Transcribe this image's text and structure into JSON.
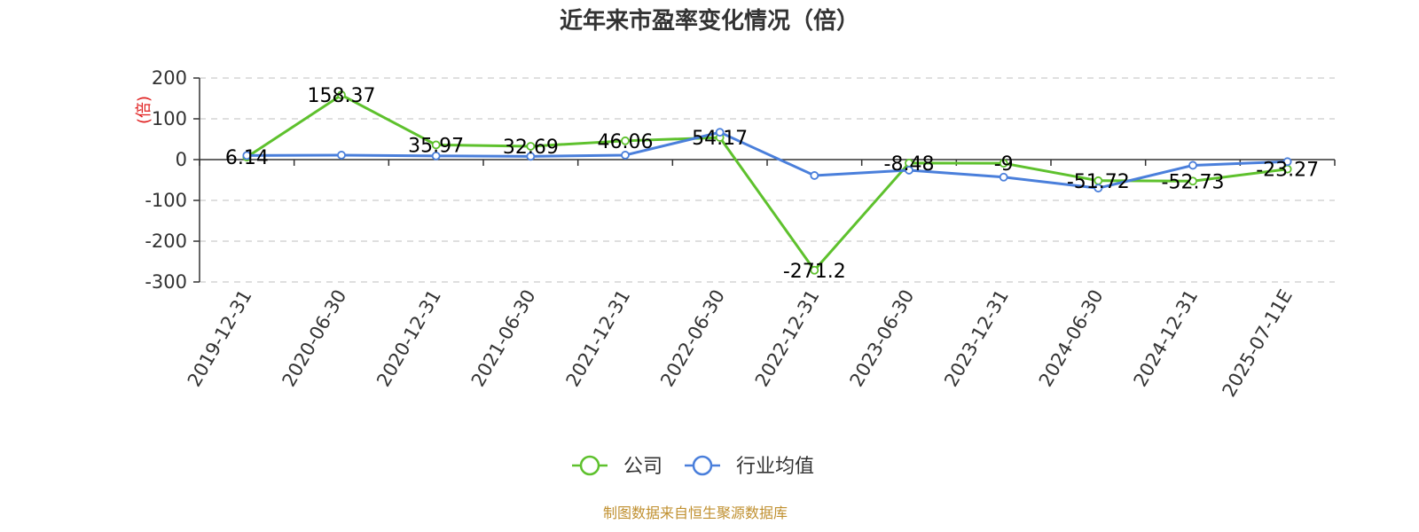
{
  "chart_data": {
    "type": "line",
    "title": "近年来市盈率变化情况（倍）",
    "ylabel": "(倍)",
    "ylabel_color": "#e02020",
    "ylim": [
      -300,
      200
    ],
    "yticks": [
      200,
      100,
      0,
      -100,
      -200,
      -300
    ],
    "grid": true,
    "legend_position": "bottom-center",
    "categories": [
      "2019-12-31",
      "2020-06-30",
      "2020-12-31",
      "2021-06-30",
      "2021-12-31",
      "2022-06-30",
      "2022-12-31",
      "2023-06-30",
      "2023-12-31",
      "2024-06-30",
      "2024-12-31",
      "2025-07-11E"
    ],
    "series": [
      {
        "name": "公司",
        "color": "#5ec12d",
        "values": [
          6.14,
          158.37,
          35.97,
          32.69,
          46.06,
          54.17,
          -271.2,
          -8.48,
          -9,
          -51.72,
          -52.73,
          -23.27
        ],
        "labels": [
          "6.14",
          "158.37",
          "35.97",
          "32.69",
          "46.06",
          "54.17",
          "-271.2",
          "-8.48",
          "-9",
          "-51.72",
          "-52.73",
          "-23.27"
        ]
      },
      {
        "name": "行业均值",
        "color": "#4a7fdb",
        "values": [
          10,
          11,
          9,
          8,
          11,
          67,
          -39,
          -26,
          -43,
          -70,
          -14,
          -5
        ]
      }
    ],
    "source_text": "制图数据来自恒生聚源数据库",
    "source_color": "#c09030"
  }
}
